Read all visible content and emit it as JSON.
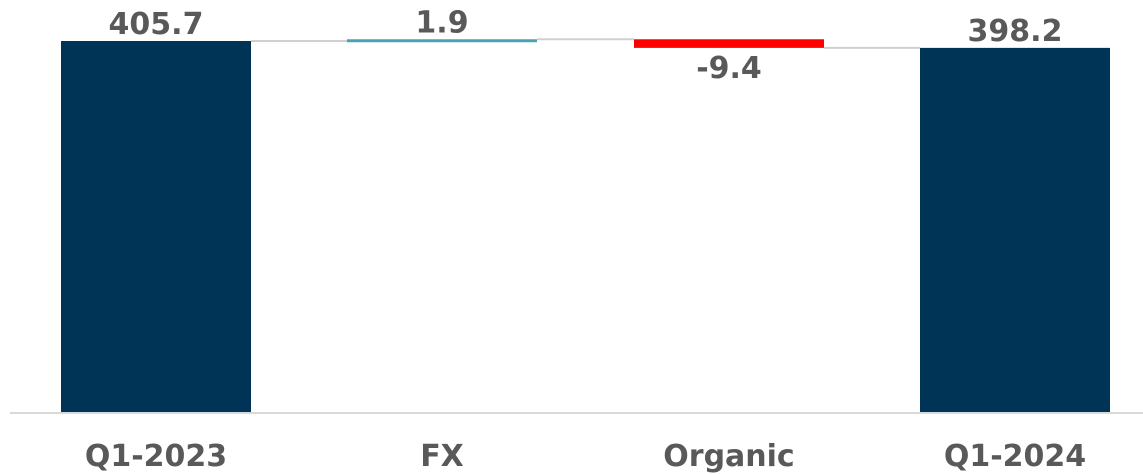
{
  "chart_data": {
    "type": "waterfall",
    "categories": [
      "Q1-2023",
      "FX",
      "Organic",
      "Q1-2024"
    ],
    "values": [
      405.7,
      1.9,
      -9.4,
      398.2
    ],
    "value_labels": [
      "405.7",
      "1.9",
      "-9.4",
      "398.2"
    ],
    "kinds": [
      "total",
      "delta",
      "delta",
      "total"
    ],
    "title": "",
    "xlabel": "",
    "ylabel": "",
    "grid": false,
    "legend": "none"
  },
  "colors": {
    "total": "#003457",
    "increase": "#4aa3b4",
    "decrease": "#ff0000",
    "connector": "#d0d0d0",
    "axis": "#d9d9d9",
    "label": "#595959"
  }
}
